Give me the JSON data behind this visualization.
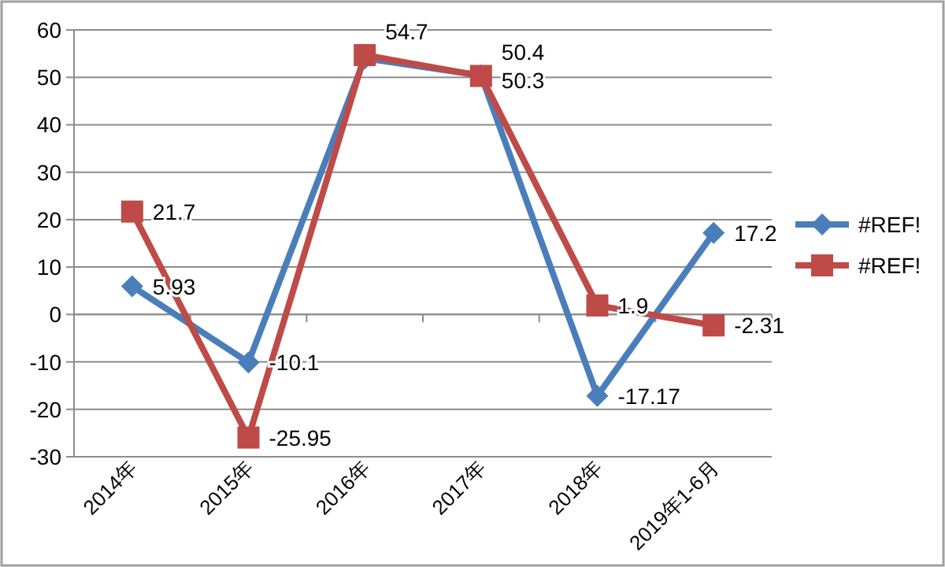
{
  "chart_data": {
    "type": "line",
    "categories": [
      "2014年",
      "2015年",
      "2016年",
      "2017年",
      "2018年",
      "2019年1-6月"
    ],
    "series": [
      {
        "name": "#REF!",
        "color": "#4a7ebb",
        "marker": "diamond",
        "values": [
          5.93,
          -10.1,
          54,
          50.4,
          -17.17,
          17.2
        ],
        "value_labels": [
          "5.93",
          "-10.1",
          null,
          "50.4",
          "-17.17",
          "17.2"
        ]
      },
      {
        "name": "#REF!",
        "color": "#be4b48",
        "marker": "square",
        "values": [
          21.7,
          -25.95,
          54.7,
          50.3,
          1.9,
          -2.31
        ],
        "value_labels": [
          "21.7",
          "-25.95",
          "54.7",
          "50.3",
          "1.9",
          "-2.31"
        ]
      }
    ],
    "ylim": [
      -30,
      60
    ],
    "yticks": [
      -30,
      -20,
      -10,
      0,
      10,
      20,
      30,
      40,
      50,
      60
    ],
    "grid": "y",
    "legend": "right"
  }
}
